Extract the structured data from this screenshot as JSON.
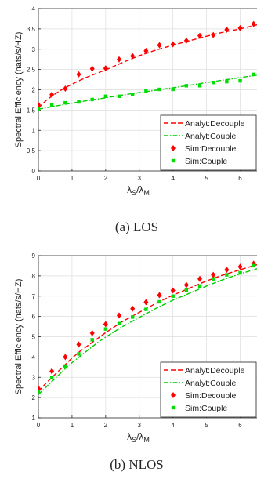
{
  "chart_data": [
    {
      "type": "line",
      "caption": "(a) LOS",
      "ylabel": "Spectral Efficiency (nats/s/HZ)",
      "xlabel": "λS/λM",
      "xlim": [
        0,
        6.5
      ],
      "ylim": [
        0,
        4
      ],
      "xticks": [
        "0",
        "1",
        "2",
        "3",
        "4",
        "5",
        "6"
      ],
      "yticks": [
        "0",
        "0.5",
        "1",
        "1.5",
        "2",
        "2.5",
        "3",
        "3.5",
        "4"
      ],
      "grid": true,
      "legend_position": "bottom-right",
      "series": [
        {
          "name": "Analyt:Decouple",
          "kind": "line",
          "style": "dashed",
          "color": "#ff0000",
          "x": [
            0,
            0.25,
            0.5,
            0.75,
            1,
            1.25,
            1.5,
            1.75,
            2,
            2.5,
            3,
            3.5,
            4,
            4.5,
            5,
            5.5,
            6,
            6.5
          ],
          "y": [
            1.55,
            1.75,
            1.9,
            2.03,
            2.14,
            2.24,
            2.33,
            2.41,
            2.49,
            2.67,
            2.84,
            2.98,
            3.1,
            3.21,
            3.32,
            3.42,
            3.5,
            3.6
          ]
        },
        {
          "name": "Analyt:Couple",
          "kind": "line",
          "style": "dashdot",
          "color": "#00cc00",
          "x": [
            0,
            0.5,
            1,
            1.5,
            2,
            2.5,
            3,
            3.5,
            4,
            4.5,
            5,
            5.5,
            6,
            6.5
          ],
          "y": [
            1.52,
            1.6,
            1.67,
            1.74,
            1.8,
            1.87,
            1.93,
            1.99,
            2.05,
            2.11,
            2.18,
            2.24,
            2.3,
            2.36
          ]
        },
        {
          "name": "Sim:Decouple",
          "kind": "marker",
          "marker": "diamond",
          "color": "#ff0000",
          "x": [
            0,
            0.4,
            0.8,
            1.2,
            1.6,
            2,
            2.4,
            2.8,
            3.2,
            3.6,
            4,
            4.4,
            4.8,
            5.2,
            5.6,
            6,
            6.4
          ],
          "y": [
            1.63,
            1.88,
            2.03,
            2.38,
            2.52,
            2.53,
            2.75,
            2.83,
            2.96,
            3.1,
            3.12,
            3.21,
            3.33,
            3.35,
            3.48,
            3.52,
            3.62
          ]
        },
        {
          "name": "Sim:Couple",
          "kind": "marker",
          "marker": "square",
          "color": "#00dd00",
          "x": [
            0,
            0.4,
            0.8,
            1.2,
            1.6,
            2,
            2.4,
            2.8,
            3.2,
            3.6,
            4,
            4.4,
            4.8,
            5.2,
            5.6,
            6,
            6.4
          ],
          "y": [
            1.53,
            1.62,
            1.68,
            1.7,
            1.76,
            1.84,
            1.84,
            1.89,
            1.97,
            2.01,
            2.01,
            2.1,
            2.1,
            2.18,
            2.2,
            2.22,
            2.38
          ]
        }
      ]
    },
    {
      "type": "line",
      "caption": "(b) NLOS",
      "ylabel": "Spectral Efficiency (nats/s/HZ)",
      "xlabel": "λS/λM",
      "xlim": [
        0,
        6.5
      ],
      "ylim": [
        1,
        9
      ],
      "xticks": [
        "0",
        "1",
        "2",
        "3",
        "4",
        "5",
        "6"
      ],
      "yticks": [
        "1",
        "2",
        "3",
        "4",
        "5",
        "6",
        "7",
        "8",
        "9"
      ],
      "grid": true,
      "legend_position": "bottom-right",
      "series": [
        {
          "name": "Analyt:Decouple",
          "kind": "line",
          "style": "dashed",
          "color": "#ff0000",
          "x": [
            0,
            0.25,
            0.5,
            0.75,
            1,
            1.25,
            1.5,
            1.75,
            2,
            2.5,
            3,
            3.5,
            4,
            4.5,
            5,
            5.5,
            6,
            6.5
          ],
          "y": [
            2.3,
            2.75,
            3.15,
            3.55,
            3.95,
            4.3,
            4.6,
            4.9,
            5.2,
            5.75,
            6.2,
            6.65,
            7.05,
            7.4,
            7.75,
            8.05,
            8.3,
            8.55
          ]
        },
        {
          "name": "Analyt:Couple",
          "kind": "line",
          "style": "dashdot",
          "color": "#00cc00",
          "x": [
            0,
            0.25,
            0.5,
            0.75,
            1,
            1.25,
            1.5,
            1.75,
            2,
            2.5,
            3,
            3.5,
            4,
            4.5,
            5,
            5.5,
            6,
            6.5
          ],
          "y": [
            2.15,
            2.55,
            2.95,
            3.35,
            3.72,
            4.05,
            4.38,
            4.7,
            4.98,
            5.5,
            5.95,
            6.4,
            6.8,
            7.15,
            7.5,
            7.82,
            8.1,
            8.35
          ]
        },
        {
          "name": "Sim:Decouple",
          "kind": "marker",
          "marker": "diamond",
          "color": "#ff0000",
          "x": [
            0,
            0.4,
            0.8,
            1.2,
            1.6,
            2,
            2.4,
            2.8,
            3.2,
            3.6,
            4,
            4.4,
            4.8,
            5.2,
            5.6,
            6,
            6.4
          ],
          "y": [
            2.45,
            3.3,
            4.0,
            4.62,
            5.18,
            5.62,
            6.05,
            6.38,
            6.7,
            7.05,
            7.28,
            7.55,
            7.85,
            8.05,
            8.3,
            8.45,
            8.6
          ]
        },
        {
          "name": "Sim:Couple",
          "kind": "marker",
          "marker": "square",
          "color": "#00dd00",
          "x": [
            0,
            0.4,
            0.8,
            1.2,
            1.6,
            2,
            2.4,
            2.8,
            3.2,
            3.6,
            4,
            4.4,
            4.8,
            5.2,
            5.6,
            6,
            6.4
          ],
          "y": [
            2.3,
            3.0,
            3.55,
            4.15,
            4.85,
            5.38,
            5.65,
            5.97,
            6.35,
            6.72,
            7.0,
            7.3,
            7.5,
            7.85,
            8.05,
            8.15,
            8.5
          ]
        }
      ]
    }
  ]
}
